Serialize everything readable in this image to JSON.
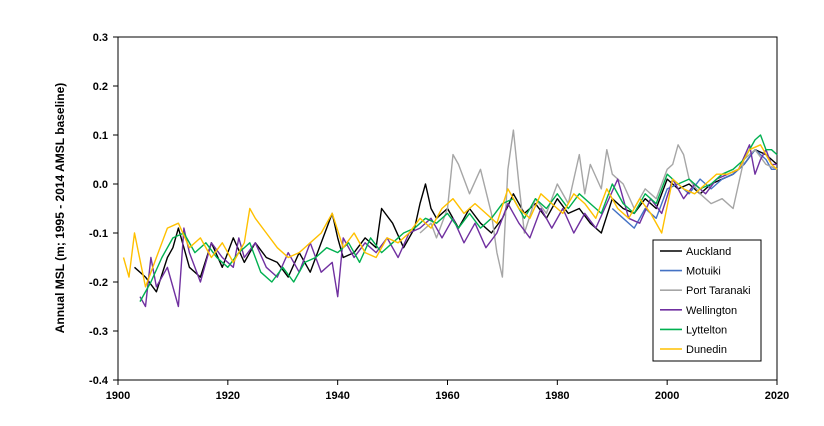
{
  "chart_data": {
    "type": "line",
    "ylabel": "Annual MSL (m; 1995 - 2014 AMSL baseline)",
    "xlim": [
      1900,
      2020
    ],
    "ylim": [
      -0.4,
      0.3
    ],
    "xticks": [
      "1900",
      "1920",
      "1940",
      "1960",
      "1980",
      "2000",
      "2020"
    ],
    "yticks": [
      "-0.4",
      "-0.3",
      "-0.2",
      "-0.1",
      "0.0",
      "0.1",
      "0.2",
      "0.3"
    ],
    "legend_position": "bottom-right",
    "series": [
      {
        "name": "Auckland",
        "color": "#000000",
        "x": [
          1903,
          1905,
          1907,
          1909,
          1910,
          1911,
          1913,
          1915,
          1917,
          1919,
          1921,
          1923,
          1925,
          1927,
          1929,
          1931,
          1933,
          1935,
          1937,
          1939,
          1940,
          1941,
          1943,
          1945,
          1947,
          1948,
          1950,
          1952,
          1954,
          1955,
          1956,
          1957,
          1958,
          1960,
          1962,
          1964,
          1966,
          1968,
          1970,
          1972,
          1974,
          1976,
          1978,
          1980,
          1982,
          1984,
          1986,
          1988,
          1990,
          1992,
          1994,
          1996,
          1998,
          2000,
          2002,
          2004,
          2006,
          2008,
          2010,
          2012,
          2014,
          2016,
          2018,
          2020
        ],
        "y": [
          -0.17,
          -0.19,
          -0.22,
          -0.15,
          -0.13,
          -0.09,
          -0.17,
          -0.19,
          -0.12,
          -0.17,
          -0.11,
          -0.16,
          -0.12,
          -0.15,
          -0.16,
          -0.19,
          -0.14,
          -0.18,
          -0.12,
          -0.06,
          -0.11,
          -0.15,
          -0.14,
          -0.11,
          -0.13,
          -0.05,
          -0.08,
          -0.13,
          -0.09,
          -0.04,
          0.0,
          -0.05,
          -0.07,
          -0.05,
          -0.09,
          -0.05,
          -0.08,
          -0.1,
          -0.07,
          -0.02,
          -0.06,
          -0.04,
          -0.07,
          -0.03,
          -0.06,
          -0.05,
          -0.08,
          -0.1,
          -0.03,
          -0.05,
          -0.06,
          -0.03,
          -0.05,
          0.01,
          -0.01,
          0.0,
          -0.02,
          0.0,
          0.01,
          0.02,
          0.04,
          0.07,
          0.06,
          0.04
        ]
      },
      {
        "name": "Motuiki",
        "color": "#4472c4",
        "x": [
          1990,
          1992,
          1994,
          1996,
          1998,
          2000,
          2002,
          2004,
          2006,
          2008,
          2010,
          2012,
          2014,
          2016,
          2018,
          2019,
          2020
        ],
        "y": [
          -0.05,
          -0.07,
          -0.09,
          -0.05,
          -0.07,
          -0.01,
          0.0,
          -0.02,
          0.01,
          -0.01,
          0.01,
          0.02,
          0.04,
          0.07,
          0.05,
          0.03,
          0.03
        ]
      },
      {
        "name": "Port Taranaki",
        "color": "#a6a6a6",
        "x": [
          1955,
          1957,
          1958,
          1960,
          1961,
          1962,
          1964,
          1966,
          1968,
          1969,
          1970,
          1971,
          1972,
          1973,
          1974,
          1976,
          1978,
          1980,
          1982,
          1984,
          1985,
          1986,
          1988,
          1989,
          1990,
          1992,
          1994,
          1996,
          1998,
          2000,
          2001,
          2002,
          2003,
          2004,
          2006,
          2008,
          2010,
          2012,
          2014,
          2016,
          2018,
          2020
        ],
        "y": [
          -0.1,
          -0.08,
          -0.11,
          -0.05,
          0.06,
          0.04,
          -0.02,
          0.03,
          -0.06,
          -0.14,
          -0.19,
          0.03,
          0.11,
          0.0,
          -0.1,
          -0.03,
          -0.06,
          0.0,
          -0.04,
          0.06,
          -0.02,
          0.04,
          -0.01,
          0.07,
          0.02,
          0.0,
          -0.05,
          -0.01,
          -0.03,
          0.03,
          0.04,
          0.08,
          0.06,
          0.01,
          -0.02,
          -0.04,
          -0.03,
          -0.05,
          0.05,
          0.07,
          0.04,
          0.03
        ]
      },
      {
        "name": "Wellington",
        "color": "#7030a0",
        "x": [
          1904,
          1905,
          1906,
          1907,
          1909,
          1911,
          1912,
          1913,
          1915,
          1917,
          1919,
          1921,
          1922,
          1923,
          1925,
          1927,
          1929,
          1931,
          1933,
          1935,
          1937,
          1939,
          1940,
          1941,
          1943,
          1945,
          1947,
          1949,
          1951,
          1953,
          1955,
          1957,
          1959,
          1961,
          1963,
          1965,
          1967,
          1969,
          1971,
          1973,
          1975,
          1977,
          1979,
          1981,
          1983,
          1985,
          1987,
          1989,
          1991,
          1993,
          1995,
          1997,
          1999,
          2001,
          2003,
          2005,
          2007,
          2009,
          2011,
          2013,
          2015,
          2016,
          2017,
          2018,
          2019,
          2020
        ],
        "y": [
          -0.23,
          -0.25,
          -0.15,
          -0.21,
          -0.17,
          -0.25,
          -0.09,
          -0.14,
          -0.2,
          -0.12,
          -0.15,
          -0.17,
          -0.11,
          -0.15,
          -0.12,
          -0.17,
          -0.19,
          -0.14,
          -0.18,
          -0.12,
          -0.18,
          -0.16,
          -0.23,
          -0.11,
          -0.15,
          -0.12,
          -0.14,
          -0.11,
          -0.15,
          -0.1,
          -0.09,
          -0.07,
          -0.11,
          -0.07,
          -0.12,
          -0.08,
          -0.13,
          -0.1,
          -0.04,
          -0.08,
          -0.11,
          -0.05,
          -0.09,
          -0.05,
          -0.1,
          -0.06,
          -0.09,
          -0.04,
          0.01,
          -0.07,
          -0.08,
          -0.03,
          -0.06,
          0.01,
          -0.03,
          0.0,
          -0.02,
          0.01,
          0.02,
          0.03,
          0.08,
          0.02,
          0.05,
          0.07,
          0.04,
          0.04
        ]
      },
      {
        "name": "Lyttelton",
        "color": "#00b050",
        "x": [
          1904,
          1906,
          1908,
          1910,
          1912,
          1914,
          1916,
          1918,
          1920,
          1922,
          1924,
          1926,
          1928,
          1930,
          1932,
          1934,
          1936,
          1938,
          1940,
          1942,
          1944,
          1946,
          1948,
          1950,
          1952,
          1954,
          1956,
          1958,
          1960,
          1962,
          1964,
          1966,
          1968,
          1970,
          1972,
          1974,
          1976,
          1978,
          1980,
          1982,
          1984,
          1986,
          1988,
          1990,
          1992,
          1994,
          1996,
          1998,
          2000,
          2002,
          2004,
          2006,
          2008,
          2010,
          2012,
          2014,
          2016,
          2017,
          2018,
          2019,
          2020
        ],
        "y": [
          -0.24,
          -0.2,
          -0.15,
          -0.11,
          -0.1,
          -0.14,
          -0.12,
          -0.15,
          -0.17,
          -0.14,
          -0.12,
          -0.18,
          -0.2,
          -0.17,
          -0.2,
          -0.16,
          -0.15,
          -0.13,
          -0.14,
          -0.12,
          -0.16,
          -0.11,
          -0.14,
          -0.12,
          -0.1,
          -0.09,
          -0.07,
          -0.08,
          -0.06,
          -0.09,
          -0.06,
          -0.09,
          -0.07,
          -0.04,
          -0.03,
          -0.07,
          -0.03,
          -0.05,
          -0.02,
          -0.05,
          -0.02,
          -0.04,
          -0.06,
          0.0,
          -0.04,
          -0.06,
          -0.02,
          -0.04,
          0.02,
          0.0,
          0.01,
          -0.01,
          0.0,
          0.02,
          0.03,
          0.05,
          0.09,
          0.1,
          0.07,
          0.07,
          0.06
        ]
      },
      {
        "name": "Dunedin",
        "color": "#ffc000",
        "x": [
          1901,
          1902,
          1903,
          1905,
          1907,
          1909,
          1911,
          1913,
          1915,
          1917,
          1919,
          1921,
          1923,
          1924,
          1925,
          1927,
          1929,
          1931,
          1933,
          1935,
          1937,
          1939,
          1941,
          1943,
          1945,
          1947,
          1949,
          1951,
          1953,
          1955,
          1957,
          1959,
          1961,
          1963,
          1965,
          1967,
          1969,
          1971,
          1973,
          1975,
          1977,
          1979,
          1981,
          1983,
          1985,
          1987,
          1989,
          1991,
          1993,
          1995,
          1997,
          1999,
          2001,
          2003,
          2005,
          2007,
          2009,
          2011,
          2013,
          2015,
          2017,
          2019,
          2020
        ],
        "y": [
          -0.15,
          -0.19,
          -0.1,
          -0.21,
          -0.15,
          -0.09,
          -0.08,
          -0.13,
          -0.11,
          -0.15,
          -0.12,
          -0.16,
          -0.12,
          -0.05,
          -0.07,
          -0.1,
          -0.13,
          -0.15,
          -0.14,
          -0.12,
          -0.1,
          -0.06,
          -0.13,
          -0.1,
          -0.14,
          -0.15,
          -0.11,
          -0.12,
          -0.1,
          -0.07,
          -0.09,
          -0.05,
          -0.03,
          -0.06,
          -0.04,
          -0.06,
          -0.08,
          -0.01,
          -0.05,
          -0.07,
          -0.02,
          -0.04,
          -0.06,
          -0.02,
          -0.04,
          -0.07,
          -0.01,
          -0.05,
          -0.07,
          -0.03,
          -0.06,
          -0.1,
          0.01,
          -0.01,
          -0.02,
          0.0,
          0.02,
          0.02,
          0.03,
          0.07,
          0.08,
          0.04,
          0.03
        ]
      }
    ]
  }
}
